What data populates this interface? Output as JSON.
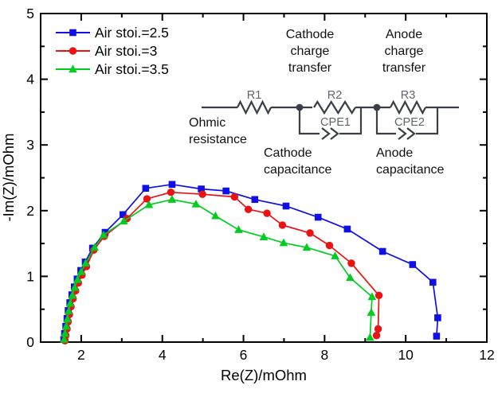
{
  "chart_data": {
    "type": "line",
    "title": "",
    "xlabel": "Re(Z)/mOhm",
    "ylabel": "-Im(Z)/mOhm",
    "xlim": [
      1,
      12
    ],
    "ylim": [
      0,
      5
    ],
    "x_major_ticks": [
      2,
      4,
      6,
      8,
      10,
      12
    ],
    "x_minor_ticks": [
      3,
      5,
      7,
      9,
      11
    ],
    "y_major_ticks": [
      0,
      1,
      2,
      3,
      4,
      5
    ],
    "y_minor_ticks": [
      0.5,
      1.5,
      2.5,
      3.5,
      4.5
    ],
    "grid": false,
    "legend_position": "top-left",
    "series": [
      {
        "name": "Air stoi.=2.5",
        "color": "#0f0fe6",
        "marker": "square",
        "points": [
          [
            1.57,
            0.04
          ],
          [
            1.59,
            0.13
          ],
          [
            1.62,
            0.24
          ],
          [
            1.65,
            0.36
          ],
          [
            1.68,
            0.48
          ],
          [
            1.72,
            0.6
          ],
          [
            1.77,
            0.72
          ],
          [
            1.83,
            0.84
          ],
          [
            1.9,
            0.96
          ],
          [
            1.99,
            1.09
          ],
          [
            2.1,
            1.22
          ],
          [
            2.28,
            1.43
          ],
          [
            2.59,
            1.67
          ],
          [
            3.03,
            1.94
          ],
          [
            3.59,
            2.34
          ],
          [
            4.24,
            2.4
          ],
          [
            4.96,
            2.33
          ],
          [
            5.57,
            2.3
          ],
          [
            6.28,
            2.17
          ],
          [
            7.05,
            2.07
          ],
          [
            7.84,
            1.9
          ],
          [
            8.56,
            1.72
          ],
          [
            9.43,
            1.38
          ],
          [
            10.17,
            1.18
          ],
          [
            10.67,
            0.91
          ],
          [
            10.79,
            0.37
          ],
          [
            10.76,
            0.09
          ]
        ]
      },
      {
        "name": "Air stoi.=3",
        "color": "#ea1212",
        "marker": "circle",
        "points": [
          [
            1.6,
            0.02
          ],
          [
            1.62,
            0.1
          ],
          [
            1.65,
            0.2
          ],
          [
            1.68,
            0.31
          ],
          [
            1.71,
            0.42
          ],
          [
            1.75,
            0.54
          ],
          [
            1.8,
            0.66
          ],
          [
            1.86,
            0.78
          ],
          [
            1.93,
            0.9
          ],
          [
            2.02,
            1.02
          ],
          [
            2.13,
            1.15
          ],
          [
            2.31,
            1.4
          ],
          [
            2.57,
            1.61
          ],
          [
            3.13,
            1.88
          ],
          [
            3.62,
            2.18
          ],
          [
            4.21,
            2.28
          ],
          [
            4.99,
            2.25
          ],
          [
            5.78,
            2.21
          ],
          [
            6.12,
            2.02
          ],
          [
            6.58,
            1.96
          ],
          [
            6.96,
            1.78
          ],
          [
            7.64,
            1.66
          ],
          [
            8.12,
            1.47
          ],
          [
            8.66,
            1.2
          ],
          [
            9.34,
            0.71
          ],
          [
            9.32,
            0.2
          ],
          [
            9.28,
            0.1
          ]
        ]
      },
      {
        "name": "Air stoi.=3.5",
        "color": "#00cd1f",
        "marker": "triangle",
        "points": [
          [
            1.58,
            0.04
          ],
          [
            1.6,
            0.13
          ],
          [
            1.63,
            0.24
          ],
          [
            1.66,
            0.35
          ],
          [
            1.69,
            0.47
          ],
          [
            1.73,
            0.59
          ],
          [
            1.78,
            0.71
          ],
          [
            1.84,
            0.83
          ],
          [
            1.91,
            0.95
          ],
          [
            2.0,
            1.07
          ],
          [
            2.11,
            1.2
          ],
          [
            2.33,
            1.44
          ],
          [
            2.55,
            1.63
          ],
          [
            3.05,
            1.84
          ],
          [
            3.67,
            2.09
          ],
          [
            4.24,
            2.17
          ],
          [
            4.83,
            2.1
          ],
          [
            5.31,
            1.92
          ],
          [
            5.88,
            1.71
          ],
          [
            6.5,
            1.6
          ],
          [
            6.99,
            1.51
          ],
          [
            7.56,
            1.44
          ],
          [
            8.26,
            1.31
          ],
          [
            8.63,
            0.98
          ],
          [
            9.17,
            0.69
          ],
          [
            9.15,
            0.45
          ],
          [
            9.12,
            0.07
          ]
        ]
      }
    ]
  },
  "circuit": {
    "line_color": "#3a3e45",
    "label_color": "#5f646e",
    "annotation_color": "#111111",
    "resistor_labels": [
      "R1",
      "R2",
      "R3"
    ],
    "cpe_labels": [
      "CPE1",
      "CPE2"
    ],
    "annotations": {
      "cathode_transfer": [
        "Cathode",
        "charge",
        "transfer"
      ],
      "anode_transfer": [
        "Anode",
        "charge",
        "transfer"
      ],
      "ohmic": [
        "Ohmic",
        "resistance"
      ],
      "cathode_cap": [
        "Cathode",
        "capacitance"
      ],
      "anode_cap": [
        "Anode",
        "capacitance"
      ]
    }
  },
  "colors": {
    "axis": "#000000",
    "background": "#ffffff"
  }
}
